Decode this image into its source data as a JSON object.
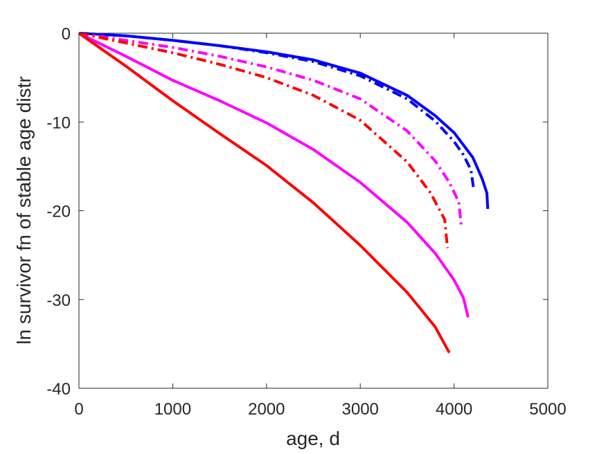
{
  "chart_data": {
    "type": "line",
    "title": "",
    "xlabel": "age, d",
    "ylabel": "ln survivor fn of stable age distr",
    "xlim": [
      0,
      5000
    ],
    "ylim": [
      -40,
      0
    ],
    "xticks": [
      0,
      1000,
      2000,
      3000,
      4000,
      5000
    ],
    "yticks": [
      -40,
      -30,
      -20,
      -10,
      0
    ],
    "xtick_labels": [
      "0",
      "1000",
      "2000",
      "3000",
      "4000",
      "5000"
    ],
    "ytick_labels": [
      "-40",
      "-30",
      "-20",
      "-10",
      "0"
    ],
    "grid": false,
    "legend": "none",
    "series": [
      {
        "color": "#0000ff",
        "style": "solid",
        "points": [
          [
            0,
            0
          ],
          [
            500,
            -0.3
          ],
          [
            1000,
            -0.8
          ],
          [
            1500,
            -1.4
          ],
          [
            2000,
            -2.1
          ],
          [
            2500,
            -3.0
          ],
          [
            3000,
            -4.5
          ],
          [
            3500,
            -7.0
          ],
          [
            3800,
            -9.3
          ],
          [
            4000,
            -11.2
          ],
          [
            4200,
            -14.0
          ],
          [
            4300,
            -16.4
          ],
          [
            4350,
            -18.0
          ],
          [
            4360,
            -19.8
          ]
        ]
      },
      {
        "color": "#0000ff",
        "style": "dashdot",
        "points": [
          [
            0,
            0
          ],
          [
            500,
            -0.3
          ],
          [
            1000,
            -0.8
          ],
          [
            1500,
            -1.4
          ],
          [
            2000,
            -2.2
          ],
          [
            2500,
            -3.2
          ],
          [
            3000,
            -4.8
          ],
          [
            3500,
            -7.4
          ],
          [
            3800,
            -9.9
          ],
          [
            4000,
            -12.2
          ],
          [
            4100,
            -13.7
          ],
          [
            4180,
            -15.4
          ],
          [
            4210,
            -17.6
          ]
        ]
      },
      {
        "color": "#ff00ff",
        "style": "dashdot",
        "points": [
          [
            0,
            0
          ],
          [
            500,
            -0.8
          ],
          [
            1000,
            -1.6
          ],
          [
            1500,
            -2.6
          ],
          [
            2000,
            -3.8
          ],
          [
            2500,
            -5.3
          ],
          [
            3000,
            -7.4
          ],
          [
            3500,
            -11.0
          ],
          [
            3800,
            -14.4
          ],
          [
            3950,
            -16.8
          ],
          [
            4050,
            -19.0
          ],
          [
            4080,
            -22.0
          ]
        ]
      },
      {
        "color": "#ff0000",
        "style": "dashdot",
        "points": [
          [
            0,
            0
          ],
          [
            500,
            -1.1
          ],
          [
            1000,
            -2.2
          ],
          [
            1500,
            -3.5
          ],
          [
            2000,
            -5.0
          ],
          [
            2500,
            -7.0
          ],
          [
            3000,
            -9.8
          ],
          [
            3500,
            -14.5
          ],
          [
            3750,
            -18.0
          ],
          [
            3900,
            -21.0
          ],
          [
            3930,
            -24.2
          ]
        ]
      },
      {
        "color": "#ff00ff",
        "style": "solid",
        "points": [
          [
            0,
            0
          ],
          [
            500,
            -2.6
          ],
          [
            1000,
            -5.3
          ],
          [
            1500,
            -7.6
          ],
          [
            2000,
            -10.1
          ],
          [
            2500,
            -13.1
          ],
          [
            3000,
            -16.8
          ],
          [
            3500,
            -21.3
          ],
          [
            3800,
            -24.8
          ],
          [
            4000,
            -27.8
          ],
          [
            4100,
            -29.8
          ],
          [
            4150,
            -32.0
          ]
        ]
      },
      {
        "color": "#ff0000",
        "style": "solid",
        "points": [
          [
            0,
            0
          ],
          [
            500,
            -3.7
          ],
          [
            1000,
            -7.6
          ],
          [
            1500,
            -11.3
          ],
          [
            2000,
            -14.9
          ],
          [
            2500,
            -19.1
          ],
          [
            3000,
            -23.9
          ],
          [
            3500,
            -29.2
          ],
          [
            3800,
            -33.1
          ],
          [
            3950,
            -36.0
          ]
        ]
      }
    ]
  }
}
